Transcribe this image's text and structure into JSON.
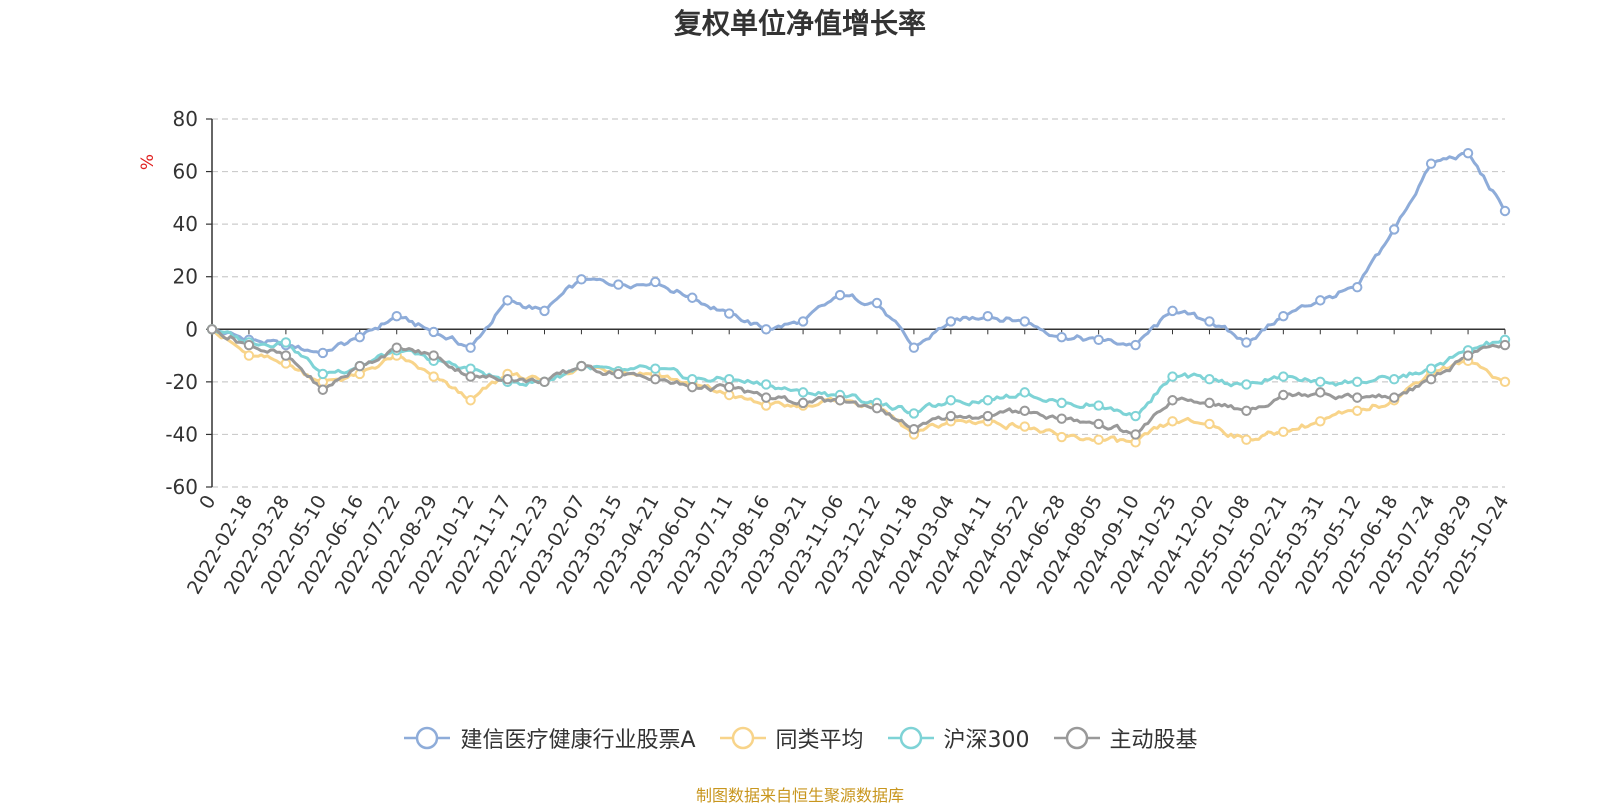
{
  "chart_data": {
    "type": "line",
    "title": "复权单位净值增长率",
    "ylabel": "%",
    "ylim": [
      -60,
      80
    ],
    "yticks": [
      80,
      60,
      40,
      20,
      0,
      -20,
      -40,
      -60
    ],
    "xlabels": [
      "0",
      "2022-02-18",
      "2022-03-28",
      "2022-05-10",
      "2022-06-16",
      "2022-07-22",
      "2022-08-29",
      "2022-10-12",
      "2022-11-17",
      "2022-12-23",
      "2023-02-07",
      "2023-03-15",
      "2023-04-21",
      "2023-06-01",
      "2023-07-11",
      "2023-08-16",
      "2023-09-21",
      "2023-11-06",
      "2023-12-12",
      "2024-01-18",
      "2024-03-04",
      "2024-04-11",
      "2024-05-22",
      "2024-06-28",
      "2024-08-05",
      "2024-09-10",
      "2024-10-25",
      "2024-12-02",
      "2025-01-08",
      "2025-02-21",
      "2025-03-31",
      "2025-05-12",
      "2025-06-18",
      "2025-07-24",
      "2025-08-29",
      "2025-10-24"
    ],
    "grid": true,
    "legend_position": "bottom",
    "series": [
      {
        "name": "建信医疗健康行业股票A",
        "color": "#8eacd9",
        "values": [
          0,
          -4,
          -6,
          -9,
          -3,
          5,
          -1,
          -7,
          11,
          7,
          19,
          17,
          18,
          12,
          6,
          0,
          3,
          13,
          10,
          -7,
          3,
          5,
          3,
          -3,
          -4,
          -6,
          7,
          3,
          -5,
          5,
          11,
          16,
          38,
          63,
          67,
          45
        ]
      },
      {
        "name": "同类平均",
        "color": "#f8d48a",
        "values": [
          0,
          -10,
          -13,
          -20,
          -17,
          -10,
          -18,
          -27,
          -17,
          -20,
          -14,
          -16,
          -17,
          -21,
          -25,
          -29,
          -29,
          -27,
          -29,
          -40,
          -35,
          -35,
          -37,
          -41,
          -42,
          -43,
          -35,
          -36,
          -42,
          -39,
          -35,
          -31,
          -27,
          -16,
          -12,
          -20
        ]
      },
      {
        "name": "沪深300",
        "color": "#7ed3d6",
        "values": [
          0,
          -5,
          -5,
          -17,
          -14,
          -8,
          -12,
          -15,
          -20,
          -20,
          -14,
          -16,
          -15,
          -19,
          -19,
          -21,
          -24,
          -25,
          -28,
          -32,
          -27,
          -27,
          -24,
          -28,
          -29,
          -33,
          -18,
          -19,
          -21,
          -18,
          -20,
          -20,
          -19,
          -15,
          -8,
          -4
        ]
      },
      {
        "name": "主动股基",
        "color": "#999999",
        "values": [
          0,
          -6,
          -10,
          -23,
          -14,
          -7,
          -10,
          -18,
          -19,
          -20,
          -14,
          -17,
          -19,
          -22,
          -22,
          -26,
          -28,
          -27,
          -30,
          -38,
          -33,
          -33,
          -31,
          -34,
          -36,
          -40,
          -27,
          -28,
          -31,
          -25,
          -24,
          -26,
          -26,
          -19,
          -10,
          -6
        ]
      }
    ]
  },
  "source": "制图数据来自恒生聚源数据库"
}
